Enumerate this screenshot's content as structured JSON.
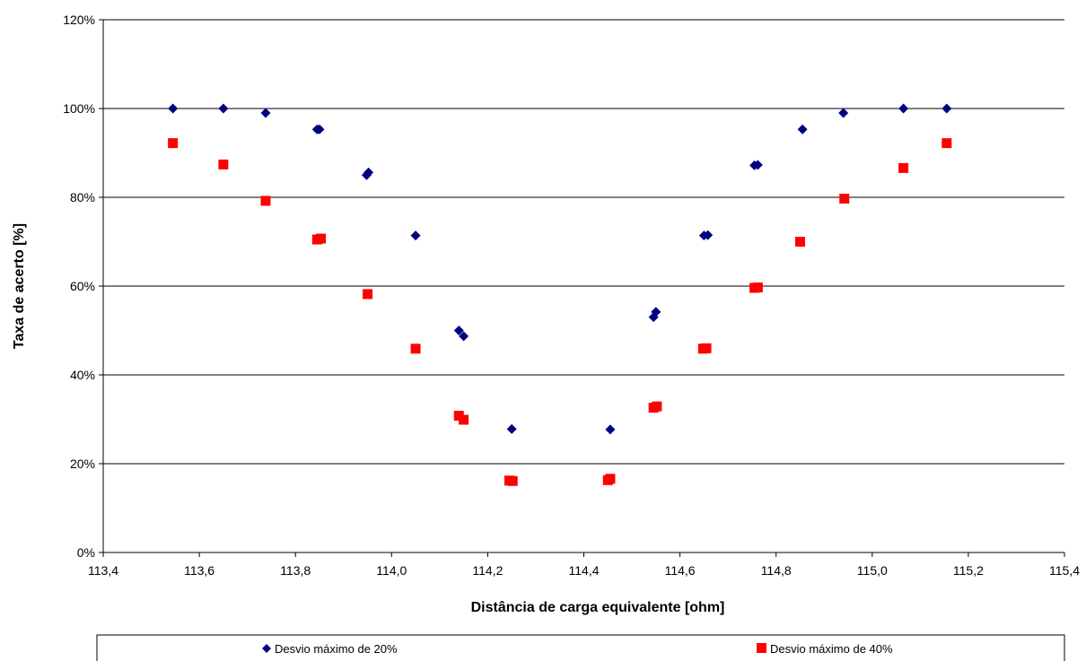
{
  "chart_data": {
    "type": "scatter",
    "title": "",
    "xlabel": "Distância de carga equivalente [ohm]",
    "ylabel": "Taxa de acerto [%]",
    "xlim": [
      113.4,
      115.4
    ],
    "ylim": [
      0,
      120
    ],
    "x_ticks": [
      113.4,
      113.6,
      113.8,
      114.0,
      114.2,
      114.4,
      114.6,
      114.8,
      115.0,
      115.2,
      115.4
    ],
    "x_tick_labels": [
      "113,4",
      "113,6",
      "113,8",
      "114,0",
      "114,2",
      "114,4",
      "114,6",
      "114,8",
      "115,0",
      "115,2",
      "115,4"
    ],
    "y_ticks": [
      0,
      20,
      40,
      60,
      80,
      100,
      120
    ],
    "y_tick_labels": [
      "0%",
      "20%",
      "40%",
      "60%",
      "80%",
      "100%",
      "120%"
    ],
    "grid": "horizontal",
    "legend_position": "bottom",
    "series": [
      {
        "name": "Desvio máximo de 20%",
        "marker": "diamond",
        "color": "#000080",
        "points": [
          [
            113.545,
            100
          ],
          [
            113.65,
            100
          ],
          [
            113.738,
            99
          ],
          [
            113.845,
            95.3
          ],
          [
            113.85,
            95.3
          ],
          [
            113.948,
            85
          ],
          [
            113.952,
            85.6
          ],
          [
            114.05,
            71.4
          ],
          [
            114.14,
            50
          ],
          [
            114.15,
            48.7
          ],
          [
            114.25,
            27.8
          ],
          [
            114.455,
            27.7
          ],
          [
            114.545,
            53
          ],
          [
            114.55,
            54.2
          ],
          [
            114.65,
            71.4
          ],
          [
            114.658,
            71.5
          ],
          [
            114.755,
            87.2
          ],
          [
            114.762,
            87.3
          ],
          [
            114.855,
            95.3
          ],
          [
            114.94,
            99
          ],
          [
            115.065,
            100
          ],
          [
            115.155,
            100
          ]
        ]
      },
      {
        "name": "Desvio máximo de 40%",
        "marker": "square",
        "color": "#ff0000",
        "points": [
          [
            113.545,
            92.2
          ],
          [
            113.65,
            87.4
          ],
          [
            113.738,
            79.2
          ],
          [
            113.845,
            70.5
          ],
          [
            113.853,
            70.7
          ],
          [
            113.95,
            58.2
          ],
          [
            114.05,
            45.9
          ],
          [
            114.14,
            30.8
          ],
          [
            114.15,
            29.9
          ],
          [
            114.245,
            16.2
          ],
          [
            114.252,
            16.1
          ],
          [
            114.45,
            16.3
          ],
          [
            114.455,
            16.6
          ],
          [
            114.545,
            32.6
          ],
          [
            114.552,
            32.9
          ],
          [
            114.648,
            45.9
          ],
          [
            114.655,
            46
          ],
          [
            114.755,
            59.6
          ],
          [
            114.762,
            59.7
          ],
          [
            114.85,
            70
          ],
          [
            114.942,
            79.7
          ],
          [
            115.065,
            86.6
          ],
          [
            115.155,
            92.2
          ]
        ]
      }
    ]
  }
}
